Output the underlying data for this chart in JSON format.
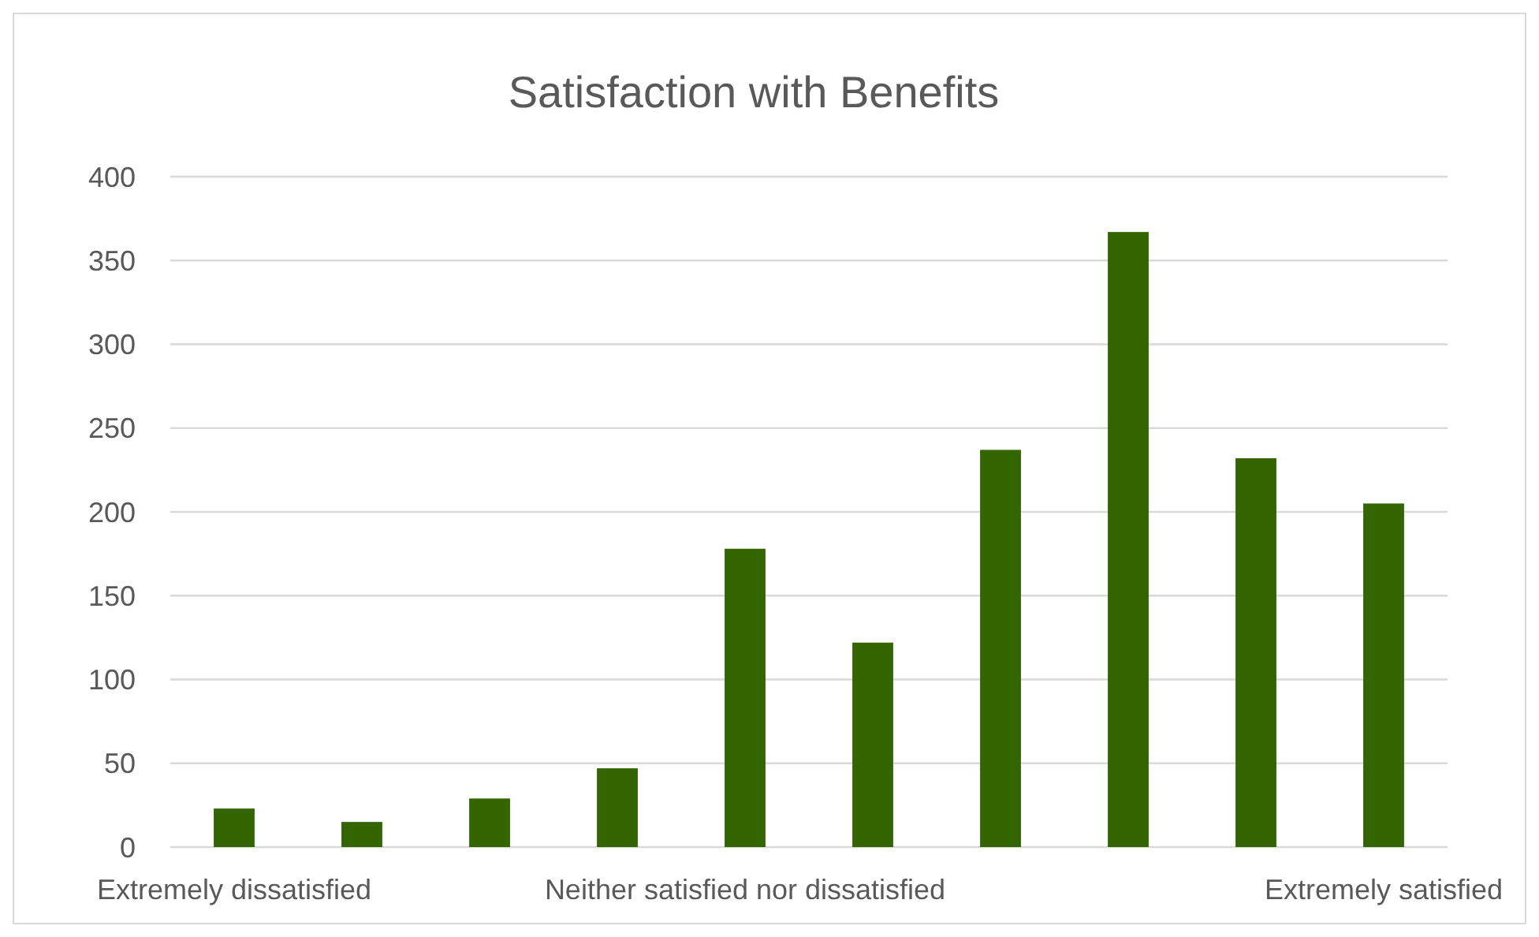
{
  "chart_data": {
    "type": "bar",
    "title": "Satisfaction with Benefits",
    "categories": [
      "Extremely dissatisfied",
      null,
      null,
      null,
      "Neither satisfied nor dissatisfied",
      null,
      null,
      null,
      null,
      "Extremely satisfied"
    ],
    "values": [
      23,
      15,
      29,
      47,
      178,
      122,
      237,
      367,
      232,
      205
    ],
    "color": "#336600",
    "ylim": [
      0,
      400
    ],
    "yticks": [
      0,
      50,
      100,
      150,
      200,
      250,
      300,
      350,
      400
    ],
    "grid": "y"
  }
}
